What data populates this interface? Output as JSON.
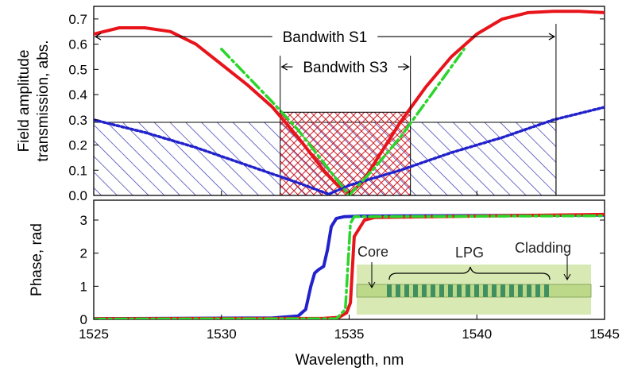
{
  "chart_data": [
    {
      "type": "line",
      "ylabel_line1": "Field amplitude",
      "ylabel_line2": "transmission, abs.",
      "xlim": [
        1525,
        1545
      ],
      "ylim": [
        0,
        0.75
      ],
      "y_ticks": [
        "0.0",
        "0.1",
        "0.2",
        "0.3",
        "0.4",
        "0.5",
        "0.6",
        "0.7"
      ],
      "y_tick_values": [
        0,
        0.1,
        0.2,
        0.3,
        0.4,
        0.5,
        0.6,
        0.7
      ],
      "grid": false,
      "series": [
        {
          "color": "#e8141b",
          "style": "solid",
          "x": [
            1525,
            1526,
            1527,
            1528,
            1529,
            1530,
            1531,
            1532,
            1533,
            1534,
            1534.5,
            1535,
            1535.5,
            1536,
            1537,
            1538,
            1539,
            1540,
            1541,
            1542,
            1543,
            1544,
            1545
          ],
          "y": [
            0.64,
            0.665,
            0.665,
            0.65,
            0.6,
            0.52,
            0.44,
            0.35,
            0.23,
            0.1,
            0.045,
            0.005,
            0.05,
            0.13,
            0.29,
            0.43,
            0.55,
            0.64,
            0.7,
            0.725,
            0.73,
            0.73,
            0.725
          ]
        },
        {
          "color": "#2222cc",
          "style": "dotted",
          "x": [
            1525,
            1527,
            1529,
            1531,
            1533,
            1534.2,
            1535,
            1537,
            1539,
            1541,
            1543,
            1545
          ],
          "y": [
            0.3,
            0.25,
            0.19,
            0.12,
            0.05,
            0.005,
            0.04,
            0.1,
            0.17,
            0.23,
            0.3,
            0.35
          ]
        },
        {
          "color": "#2bd62b",
          "style": "dash-dot",
          "x": [
            1530,
            1532,
            1533,
            1534,
            1535,
            1536,
            1537,
            1538,
            1539.5
          ],
          "y": [
            0.58,
            0.37,
            0.26,
            0.13,
            0.0,
            0.11,
            0.23,
            0.37,
            0.58
          ]
        }
      ],
      "shaded_regions": [
        {
          "name": "Bandwith S1",
          "color": "#2222aa",
          "pattern": "diagonal",
          "x": [
            1525,
            1543.1
          ],
          "y": [
            0,
            0.29
          ]
        },
        {
          "name": "Bandwith S3",
          "color": "#d0202a",
          "pattern": "crosshatch",
          "x": [
            1532.3,
            1537.4
          ],
          "y": [
            0,
            0.33
          ]
        }
      ],
      "annotations": [
        {
          "text": "Bandwith S1",
          "x": [
            1525,
            1543.1
          ],
          "y": 0.63
        },
        {
          "text": "Bandwith S3",
          "x": [
            1532.3,
            1537.4
          ],
          "y": 0.51
        }
      ]
    },
    {
      "type": "line",
      "xlabel": "Wavelength, nm",
      "ylabel": "Phase, rad",
      "xlim": [
        1525,
        1545
      ],
      "ylim": [
        0,
        3.6
      ],
      "x_ticks": [
        "1525",
        "1530",
        "1535",
        "1540",
        "1545"
      ],
      "x_tick_values": [
        1525,
        1530,
        1535,
        1540,
        1545
      ],
      "y_ticks": [
        "0",
        "1",
        "2",
        "3"
      ],
      "y_tick_values": [
        0,
        1,
        2,
        3
      ],
      "grid": false,
      "series": [
        {
          "color": "#2222cc",
          "style": "solid",
          "x": [
            1525,
            1532,
            1533,
            1533.3,
            1533.5,
            1533.65,
            1533.8,
            1534.0,
            1534.15,
            1534.3,
            1534.5,
            1534.8,
            1535.5,
            1545
          ],
          "y": [
            0.02,
            0.04,
            0.1,
            0.3,
            1.0,
            1.4,
            1.5,
            1.6,
            2.1,
            2.8,
            3.05,
            3.1,
            3.12,
            3.15
          ]
        },
        {
          "color": "#e8141b",
          "style": "solid",
          "x": [
            1525,
            1534,
            1534.6,
            1534.9,
            1535.05,
            1535.2,
            1535.6,
            1536,
            1545
          ],
          "y": [
            0.02,
            0.03,
            0.06,
            0.2,
            0.5,
            2.5,
            3.0,
            3.08,
            3.17
          ]
        },
        {
          "color": "#2bd62b",
          "style": "dash-dot",
          "x": [
            1525,
            1534.5,
            1534.85,
            1534.95,
            1535.05,
            1535.2,
            1545
          ],
          "y": [
            0.01,
            0.02,
            0.3,
            1.6,
            2.9,
            3.1,
            3.13
          ]
        }
      ],
      "inset": {
        "labels": {
          "core": "Core",
          "lpg": "LPG",
          "cladding": "Cladding"
        },
        "colors": {
          "cladding": "#d9e9b4",
          "core": "#bcd98a",
          "grating": "#3f8f60"
        }
      }
    }
  ]
}
